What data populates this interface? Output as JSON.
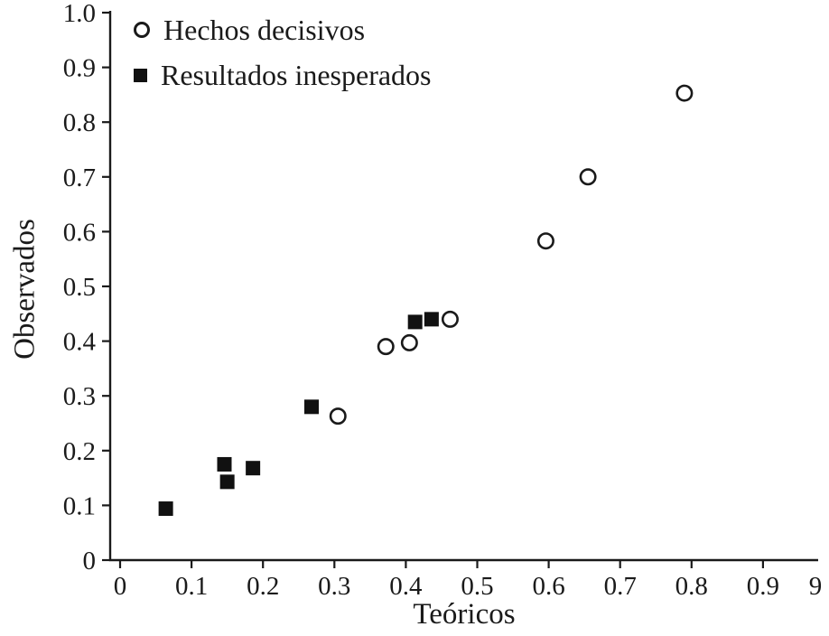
{
  "figure": {
    "background": "#ffffff",
    "ink_color": "#1a1a1a"
  },
  "chart_data": {
    "type": "scatter",
    "title": "",
    "xlabel": "Teóricos",
    "ylabel": "Observados",
    "xlim": [
      0,
      0.977
    ],
    "ylim": [
      0,
      1.0
    ],
    "grid": false,
    "legend_position": "top-left-inside",
    "xticks": {
      "values": [
        0,
        0.1,
        0.2,
        0.3,
        0.4,
        0.5,
        0.6,
        0.7,
        0.8,
        0.9
      ],
      "labels": [
        "0",
        "0.1",
        "0.2",
        "0.3",
        "0.4",
        "0.5",
        "0.6",
        "0.7",
        "0.8",
        "0.9"
      ]
    },
    "x_partial_label": {
      "value": 0.9735,
      "text": "9"
    },
    "yticks": {
      "values": [
        0,
        0.1,
        0.2,
        0.3,
        0.4,
        0.5,
        0.6,
        0.7,
        0.8,
        0.9,
        1.0
      ],
      "labels": [
        "0",
        "0.1",
        "0.2",
        "0.3",
        "0.4",
        "0.5",
        "0.6",
        "0.7",
        "0.8",
        "0.9",
        "1.0"
      ]
    },
    "series": [
      {
        "name": "Hechos decisivos",
        "marker": "circle",
        "points": [
          [
            0.305,
            0.263
          ],
          [
            0.372,
            0.39
          ],
          [
            0.405,
            0.397
          ],
          [
            0.462,
            0.44
          ],
          [
            0.596,
            0.583
          ],
          [
            0.655,
            0.7
          ],
          [
            0.79,
            0.853
          ]
        ]
      },
      {
        "name": "Resultados inesperados",
        "marker": "square",
        "points": [
          [
            0.064,
            0.094
          ],
          [
            0.146,
            0.175
          ],
          [
            0.15,
            0.143
          ],
          [
            0.186,
            0.168
          ],
          [
            0.268,
            0.28
          ],
          [
            0.413,
            0.435
          ],
          [
            0.436,
            0.44
          ]
        ]
      }
    ]
  }
}
